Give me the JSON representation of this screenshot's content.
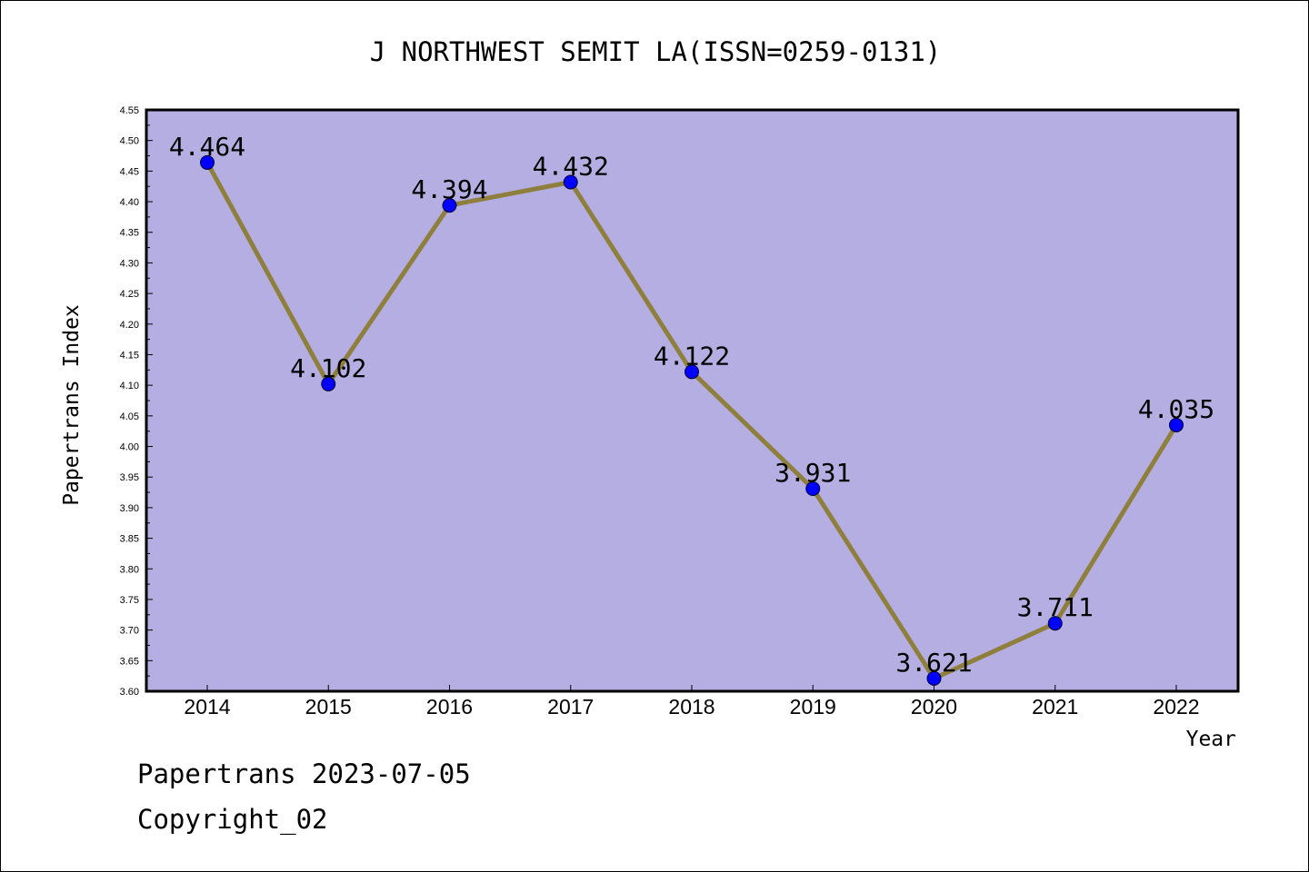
{
  "chart_data": {
    "type": "line",
    "title": "J NORTHWEST SEMIT LA(ISSN=0259-0131)",
    "xlabel": "Year",
    "ylabel": "Papertrans Index",
    "x": [
      "2014",
      "2015",
      "2016",
      "2017",
      "2018",
      "2019",
      "2020",
      "2021",
      "2022"
    ],
    "values": [
      4.464,
      4.102,
      4.394,
      4.432,
      4.122,
      3.931,
      3.621,
      3.711,
      4.035
    ],
    "data_labels": [
      "4.464",
      "4.102",
      "4.394",
      "4.432",
      "4.122",
      "3.931",
      "3.621",
      "3.711",
      "4.035"
    ],
    "ylim": [
      3.6,
      4.55
    ],
    "yticks": [
      "3.60",
      "3.65",
      "3.70",
      "3.75",
      "3.80",
      "3.85",
      "3.90",
      "3.95",
      "4.00",
      "4.05",
      "4.10",
      "4.15",
      "4.20",
      "4.25",
      "4.30",
      "4.35",
      "4.40",
      "4.45",
      "4.50",
      "4.55"
    ],
    "grid": false,
    "legend": "none",
    "colors": {
      "plot_background": "#b5aee2",
      "line": "#8f7f3d",
      "marker": "#0000ff"
    }
  },
  "footer": {
    "line1": "Papertrans 2023-07-05",
    "line2": "Copyright_02"
  }
}
